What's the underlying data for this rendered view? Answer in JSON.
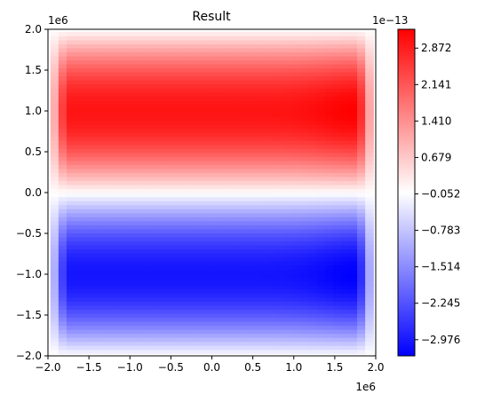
{
  "chart_data": {
    "type": "heatmap",
    "title": "Result",
    "xlabel": "",
    "ylabel": "",
    "x_offset_label": "1e6",
    "y_offset_label": "1e6",
    "xlim": [
      -2.0,
      2.0
    ],
    "ylim": [
      -2.0,
      2.0
    ],
    "x_ticks": [
      "−2.0",
      "−1.5",
      "−1.0",
      "−0.5",
      "0.0",
      "0.5",
      "1.0",
      "1.5",
      "2.0"
    ],
    "y_ticks": [
      "−2.0",
      "−1.5",
      "−1.0",
      "−0.5",
      "0.0",
      "0.5",
      "1.0",
      "1.5",
      "2.0"
    ],
    "x_tick_values": [
      -2.0,
      -1.5,
      -1.0,
      -0.5,
      0.0,
      0.5,
      1.0,
      1.5,
      2.0
    ],
    "y_tick_values": [
      -2.0,
      -1.5,
      -1.0,
      -0.5,
      0.0,
      0.5,
      1.0,
      1.5,
      2.0
    ],
    "colorbar": {
      "offset_label": "1e−13",
      "tick_labels": [
        "2.872",
        "2.141",
        "1.410",
        "0.679",
        "−0.052",
        "−0.783",
        "−1.514",
        "−2.245",
        "−2.976"
      ],
      "tick_values": [
        2.872,
        2.141,
        1.41,
        0.679,
        -0.052,
        -0.783,
        -1.514,
        -2.245,
        -2.976
      ],
      "range": [
        -3.3,
        3.25
      ],
      "colormap": "bwr",
      "colors": {
        "min": "#0000ff",
        "mid": "#ffffff",
        "max": "#ff0000"
      }
    },
    "data_extent": {
      "x": [
        -1.97,
        1.97
      ],
      "y": [
        -1.97,
        1.97
      ]
    },
    "field": {
      "description_of_pattern": "value ~ sin(pi*y/2e6), positive in upper half, negative in lower half",
      "peak_positive": {
        "x": 1.75,
        "y": 1.0,
        "value": 3.25
      },
      "peak_negative": {
        "x": 1.75,
        "y": -1.0,
        "value": -3.3
      }
    }
  }
}
